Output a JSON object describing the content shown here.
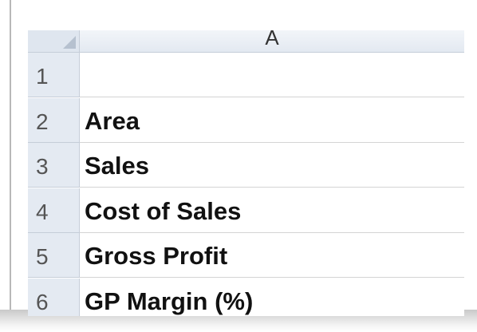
{
  "sheet": {
    "column_header": "A",
    "rows": [
      {
        "number": "1"
      },
      {
        "number": "2",
        "label": "Area"
      },
      {
        "number": "3",
        "label": "Sales"
      },
      {
        "number": "4",
        "label": "Cost of Sales"
      },
      {
        "number": "5",
        "label": "Gross Profit"
      },
      {
        "number": "6",
        "label": "GP Margin (%)"
      }
    ]
  }
}
